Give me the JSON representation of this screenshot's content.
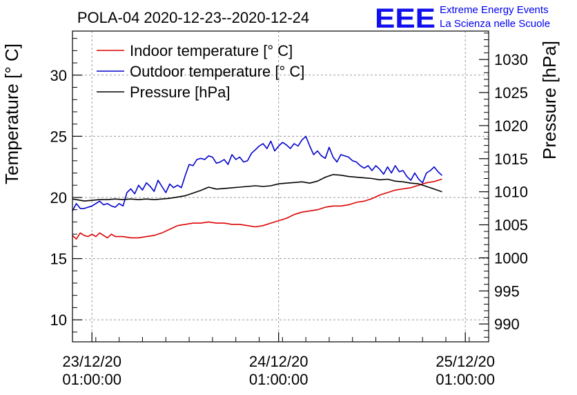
{
  "chart_data": {
    "type": "line",
    "title": "POLA-04 2020-12-23--2020-12-24",
    "ylabel": "Temperature [° C]",
    "y2label": "Pressure [hPa]",
    "ylim": [
      8.2,
      33.6
    ],
    "y2lim": [
      987.3,
      1034.3
    ],
    "xlim": [
      "2020-12-22 22:30",
      "2020-12-25 04:00"
    ],
    "yticks": [
      10,
      15,
      20,
      25,
      30
    ],
    "y2ticks": [
      990,
      995,
      1000,
      1005,
      1010,
      1015,
      1020,
      1025,
      1030
    ],
    "xticks": [
      {
        "x": "2020-12-23 01:00",
        "date": "23/12/20",
        "time": "01:00:00"
      },
      {
        "x": "2020-12-24 01:00",
        "date": "24/12/20",
        "time": "01:00:00"
      },
      {
        "x": "2020-12-25 01:00",
        "date": "25/12/20",
        "time": "01:00:00"
      }
    ],
    "grid": true,
    "legend_position": "top-left",
    "series": [
      {
        "name": "Indoor temperature [° C]",
        "color": "#dd0000",
        "axis": "left",
        "points": [
          [
            "2020-12-22 22:30",
            16.9
          ],
          [
            "2020-12-22 23:00",
            16.6
          ],
          [
            "2020-12-22 23:30",
            17.1
          ],
          [
            "2020-12-23 00:00",
            16.9
          ],
          [
            "2020-12-23 00:30",
            16.8
          ],
          [
            "2020-12-23 01:00",
            17.0
          ],
          [
            "2020-12-23 01:30",
            16.8
          ],
          [
            "2020-12-23 02:00",
            17.1
          ],
          [
            "2020-12-23 02:30",
            16.9
          ],
          [
            "2020-12-23 03:00",
            16.7
          ],
          [
            "2020-12-23 03:30",
            17.0
          ],
          [
            "2020-12-23 04:00",
            16.8
          ],
          [
            "2020-12-23 04:30",
            16.8
          ],
          [
            "2020-12-23 05:00",
            16.8
          ],
          [
            "2020-12-23 06:00",
            16.7
          ],
          [
            "2020-12-23 07:00",
            16.7
          ],
          [
            "2020-12-23 08:00",
            16.8
          ],
          [
            "2020-12-23 09:00",
            16.9
          ],
          [
            "2020-12-23 10:00",
            17.1
          ],
          [
            "2020-12-23 11:00",
            17.4
          ],
          [
            "2020-12-23 12:00",
            17.7
          ],
          [
            "2020-12-23 13:00",
            17.8
          ],
          [
            "2020-12-23 14:00",
            17.9
          ],
          [
            "2020-12-23 15:00",
            17.9
          ],
          [
            "2020-12-23 16:00",
            18.0
          ],
          [
            "2020-12-23 17:00",
            17.9
          ],
          [
            "2020-12-23 18:00",
            17.9
          ],
          [
            "2020-12-23 19:00",
            17.8
          ],
          [
            "2020-12-23 20:00",
            17.8
          ],
          [
            "2020-12-23 21:00",
            17.7
          ],
          [
            "2020-12-23 22:00",
            17.6
          ],
          [
            "2020-12-23 23:00",
            17.7
          ],
          [
            "2020-12-24 00:00",
            17.9
          ],
          [
            "2020-12-24 01:00",
            18.1
          ],
          [
            "2020-12-24 02:00",
            18.3
          ],
          [
            "2020-12-24 03:00",
            18.6
          ],
          [
            "2020-12-24 04:00",
            18.8
          ],
          [
            "2020-12-24 05:00",
            18.9
          ],
          [
            "2020-12-24 06:00",
            19.0
          ],
          [
            "2020-12-24 07:00",
            19.2
          ],
          [
            "2020-12-24 08:00",
            19.3
          ],
          [
            "2020-12-24 09:00",
            19.3
          ],
          [
            "2020-12-24 10:00",
            19.4
          ],
          [
            "2020-12-24 11:00",
            19.6
          ],
          [
            "2020-12-24 12:00",
            19.7
          ],
          [
            "2020-12-24 13:00",
            19.9
          ],
          [
            "2020-12-24 14:00",
            20.2
          ],
          [
            "2020-12-24 15:00",
            20.4
          ],
          [
            "2020-12-24 16:00",
            20.6
          ],
          [
            "2020-12-24 17:00",
            20.7
          ],
          [
            "2020-12-24 18:00",
            20.8
          ],
          [
            "2020-12-24 19:00",
            21.0
          ],
          [
            "2020-12-24 20:00",
            21.2
          ],
          [
            "2020-12-24 21:00",
            21.3
          ],
          [
            "2020-12-24 22:00",
            21.5
          ]
        ]
      },
      {
        "name": "Outdoor temperature [° C]",
        "color": "#0000cc",
        "axis": "left",
        "points": [
          [
            "2020-12-22 22:30",
            18.9
          ],
          [
            "2020-12-22 23:00",
            19.5
          ],
          [
            "2020-12-22 23:30",
            19.1
          ],
          [
            "2020-12-23 00:00",
            19.1
          ],
          [
            "2020-12-23 00:30",
            19.2
          ],
          [
            "2020-12-23 01:00",
            19.3
          ],
          [
            "2020-12-23 01:30",
            19.5
          ],
          [
            "2020-12-23 02:00",
            19.7
          ],
          [
            "2020-12-23 02:30",
            19.4
          ],
          [
            "2020-12-23 03:00",
            19.5
          ],
          [
            "2020-12-23 03:30",
            19.3
          ],
          [
            "2020-12-23 04:00",
            19.2
          ],
          [
            "2020-12-23 04:30",
            19.5
          ],
          [
            "2020-12-23 05:00",
            19.3
          ],
          [
            "2020-12-23 05:30",
            20.4
          ],
          [
            "2020-12-23 06:00",
            20.7
          ],
          [
            "2020-12-23 06:30",
            20.3
          ],
          [
            "2020-12-23 07:00",
            21.0
          ],
          [
            "2020-12-23 07:30",
            20.6
          ],
          [
            "2020-12-23 08:00",
            21.2
          ],
          [
            "2020-12-23 08:30",
            20.9
          ],
          [
            "2020-12-23 09:00",
            20.5
          ],
          [
            "2020-12-23 09:30",
            21.4
          ],
          [
            "2020-12-23 10:00",
            20.9
          ],
          [
            "2020-12-23 10:30",
            20.4
          ],
          [
            "2020-12-23 11:00",
            21.1
          ],
          [
            "2020-12-23 11:30",
            20.8
          ],
          [
            "2020-12-23 12:00",
            21.0
          ],
          [
            "2020-12-23 12:30",
            20.8
          ],
          [
            "2020-12-23 13:00",
            21.8
          ],
          [
            "2020-12-23 13:30",
            22.7
          ],
          [
            "2020-12-23 14:00",
            22.6
          ],
          [
            "2020-12-23 14:30",
            23.1
          ],
          [
            "2020-12-23 15:00",
            23.2
          ],
          [
            "2020-12-23 15:30",
            23.1
          ],
          [
            "2020-12-23 16:00",
            23.4
          ],
          [
            "2020-12-23 16:30",
            23.3
          ],
          [
            "2020-12-23 17:00",
            22.8
          ],
          [
            "2020-12-23 17:30",
            22.9
          ],
          [
            "2020-12-23 18:00",
            23.1
          ],
          [
            "2020-12-23 18:30",
            22.7
          ],
          [
            "2020-12-23 19:00",
            23.5
          ],
          [
            "2020-12-23 19:30",
            23.1
          ],
          [
            "2020-12-23 20:00",
            23.3
          ],
          [
            "2020-12-23 20:30",
            22.9
          ],
          [
            "2020-12-23 21:00",
            23.0
          ],
          [
            "2020-12-23 21:30",
            23.6
          ],
          [
            "2020-12-23 22:00",
            23.9
          ],
          [
            "2020-12-23 22:30",
            24.2
          ],
          [
            "2020-12-23 23:00",
            24.4
          ],
          [
            "2020-12-23 23:30",
            24.0
          ],
          [
            "2020-12-24 00:00",
            24.6
          ],
          [
            "2020-12-24 00:30",
            23.8
          ],
          [
            "2020-12-24 01:00",
            24.2
          ],
          [
            "2020-12-24 01:30",
            24.5
          ],
          [
            "2020-12-24 02:00",
            24.3
          ],
          [
            "2020-12-24 02:30",
            24.0
          ],
          [
            "2020-12-24 03:00",
            24.4
          ],
          [
            "2020-12-24 03:30",
            24.2
          ],
          [
            "2020-12-24 04:00",
            24.7
          ],
          [
            "2020-12-24 04:30",
            25.0
          ],
          [
            "2020-12-24 05:00",
            24.2
          ],
          [
            "2020-12-24 05:30",
            23.5
          ],
          [
            "2020-12-24 06:00",
            23.8
          ],
          [
            "2020-12-24 06:30",
            23.4
          ],
          [
            "2020-12-24 07:00",
            23.2
          ],
          [
            "2020-12-24 07:30",
            24.1
          ],
          [
            "2020-12-24 08:00",
            23.3
          ],
          [
            "2020-12-24 08:30",
            22.9
          ],
          [
            "2020-12-24 09:00",
            23.5
          ],
          [
            "2020-12-24 09:30",
            23.4
          ],
          [
            "2020-12-24 10:00",
            23.3
          ],
          [
            "2020-12-24 10:30",
            23.0
          ],
          [
            "2020-12-24 11:00",
            22.9
          ],
          [
            "2020-12-24 11:30",
            22.6
          ],
          [
            "2020-12-24 12:00",
            22.4
          ],
          [
            "2020-12-24 12:30",
            22.6
          ],
          [
            "2020-12-24 13:00",
            22.2
          ],
          [
            "2020-12-24 13:30",
            22.6
          ],
          [
            "2020-12-24 14:00",
            22.3
          ],
          [
            "2020-12-24 14:30",
            21.9
          ],
          [
            "2020-12-24 15:00",
            22.5
          ],
          [
            "2020-12-24 15:30",
            22.0
          ],
          [
            "2020-12-24 16:00",
            22.6
          ],
          [
            "2020-12-24 16:30",
            22.1
          ],
          [
            "2020-12-24 17:00",
            22.2
          ],
          [
            "2020-12-24 17:30",
            21.7
          ],
          [
            "2020-12-24 18:00",
            21.4
          ],
          [
            "2020-12-24 18:30",
            22.0
          ],
          [
            "2020-12-24 19:00",
            21.5
          ],
          [
            "2020-12-24 19:30",
            21.2
          ],
          [
            "2020-12-24 20:00",
            22.0
          ],
          [
            "2020-12-24 20:30",
            22.2
          ],
          [
            "2020-12-24 21:00",
            22.5
          ],
          [
            "2020-12-24 21:30",
            22.1
          ],
          [
            "2020-12-24 22:00",
            21.8
          ]
        ]
      },
      {
        "name": "Pressure [hPa]",
        "color": "#000000",
        "axis": "right",
        "points": [
          [
            "2020-12-22 22:30",
            1008.9
          ],
          [
            "2020-12-22 23:00",
            1008.8
          ],
          [
            "2020-12-23 00:00",
            1008.6
          ],
          [
            "2020-12-23 01:00",
            1008.7
          ],
          [
            "2020-12-23 02:00",
            1008.8
          ],
          [
            "2020-12-23 03:00",
            1008.8
          ],
          [
            "2020-12-23 04:00",
            1008.9
          ],
          [
            "2020-12-23 05:00",
            1008.8
          ],
          [
            "2020-12-23 06:00",
            1008.9
          ],
          [
            "2020-12-23 07:00",
            1008.8
          ],
          [
            "2020-12-23 08:00",
            1008.9
          ],
          [
            "2020-12-23 09:00",
            1008.8
          ],
          [
            "2020-12-23 10:00",
            1008.9
          ],
          [
            "2020-12-23 11:00",
            1009.0
          ],
          [
            "2020-12-23 12:00",
            1009.2
          ],
          [
            "2020-12-23 13:00",
            1009.4
          ],
          [
            "2020-12-23 14:00",
            1009.8
          ],
          [
            "2020-12-23 15:00",
            1010.2
          ],
          [
            "2020-12-23 16:00",
            1010.7
          ],
          [
            "2020-12-23 17:00",
            1010.4
          ],
          [
            "2020-12-23 18:00",
            1010.5
          ],
          [
            "2020-12-23 19:00",
            1010.6
          ],
          [
            "2020-12-23 20:00",
            1010.7
          ],
          [
            "2020-12-23 21:00",
            1010.8
          ],
          [
            "2020-12-23 22:00",
            1010.9
          ],
          [
            "2020-12-23 23:00",
            1010.8
          ],
          [
            "2020-12-24 00:00",
            1010.9
          ],
          [
            "2020-12-24 01:00",
            1011.2
          ],
          [
            "2020-12-24 02:00",
            1011.3
          ],
          [
            "2020-12-24 03:00",
            1011.4
          ],
          [
            "2020-12-24 04:00",
            1011.5
          ],
          [
            "2020-12-24 05:00",
            1011.3
          ],
          [
            "2020-12-24 06:00",
            1011.6
          ],
          [
            "2020-12-24 07:00",
            1012.2
          ],
          [
            "2020-12-24 08:00",
            1012.6
          ],
          [
            "2020-12-24 09:00",
            1012.5
          ],
          [
            "2020-12-24 10:00",
            1012.3
          ],
          [
            "2020-12-24 11:00",
            1012.2
          ],
          [
            "2020-12-24 12:00",
            1012.1
          ],
          [
            "2020-12-24 13:00",
            1012.0
          ],
          [
            "2020-12-24 14:00",
            1011.8
          ],
          [
            "2020-12-24 15:00",
            1011.9
          ],
          [
            "2020-12-24 16:00",
            1011.6
          ],
          [
            "2020-12-24 17:00",
            1011.5
          ],
          [
            "2020-12-24 18:00",
            1011.3
          ],
          [
            "2020-12-24 19:00",
            1011.2
          ],
          [
            "2020-12-24 20:00",
            1010.8
          ],
          [
            "2020-12-24 21:00",
            1010.4
          ],
          [
            "2020-12-24 22:00",
            1010.0
          ]
        ]
      }
    ]
  },
  "logo": {
    "mark": "EEE",
    "line1": "Extreme Energy Events",
    "line2": "La Scienza nelle Scuole",
    "color": "#0000ee"
  }
}
